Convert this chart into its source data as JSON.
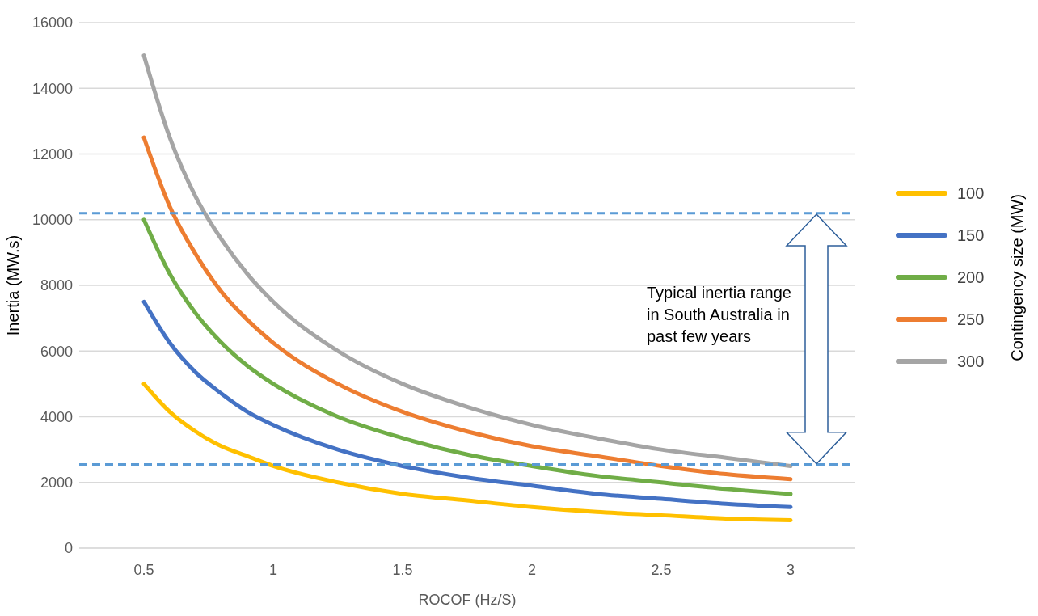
{
  "chart_data": {
    "type": "line",
    "xlabel": "ROCOF (Hz/S)",
    "ylabel": "Inertia (MW.s)",
    "legend_title": "Contingency size (MW)",
    "x": [
      0.5,
      0.6,
      0.7,
      0.8,
      0.9,
      1,
      1.25,
      1.5,
      1.75,
      2,
      2.25,
      2.5,
      2.75,
      3
    ],
    "series": [
      {
        "name": "100",
        "color": "#ffc000",
        "values": [
          5000,
          4150,
          3550,
          3100,
          2800,
          2500,
          2000,
          1650,
          1450,
          1250,
          1100,
          1000,
          900,
          850
        ]
      },
      {
        "name": "150",
        "color": "#4472c4",
        "values": [
          7500,
          6250,
          5350,
          4700,
          4150,
          3750,
          3000,
          2500,
          2150,
          1900,
          1650,
          1500,
          1350,
          1250
        ]
      },
      {
        "name": "200",
        "color": "#70ad47",
        "values": [
          10000,
          8350,
          7150,
          6250,
          5550,
          5000,
          4000,
          3350,
          2850,
          2500,
          2200,
          2000,
          1800,
          1650
        ]
      },
      {
        "name": "250",
        "color": "#ed7d31",
        "values": [
          12500,
          10400,
          8950,
          7800,
          6950,
          6250,
          5000,
          4150,
          3550,
          3100,
          2800,
          2500,
          2250,
          2100
        ]
      },
      {
        "name": "300",
        "color": "#a5a5a5",
        "values": [
          15000,
          12500,
          10700,
          9400,
          8350,
          7500,
          6000,
          5000,
          4300,
          3750,
          3350,
          3000,
          2750,
          2500
        ]
      }
    ],
    "xlim": [
      0.25,
      3.25
    ],
    "xticks": [
      0.5,
      1,
      1.5,
      2,
      2.5,
      3
    ],
    "ylim": [
      0,
      16000
    ],
    "yticks": [
      0,
      2000,
      4000,
      6000,
      8000,
      10000,
      12000,
      14000,
      16000
    ],
    "ref_lines": [
      {
        "axis": "y",
        "value": 10200,
        "color": "#5b9bd5",
        "line_style": "dashed"
      },
      {
        "axis": "y",
        "value": 2550,
        "color": "#5b9bd5",
        "line_style": "dashed"
      }
    ],
    "annotations": [
      "Typical inertia range in South Australia in past few years"
    ],
    "grid": "y",
    "legend": "right",
    "marker": "none",
    "line_style": "solid"
  }
}
